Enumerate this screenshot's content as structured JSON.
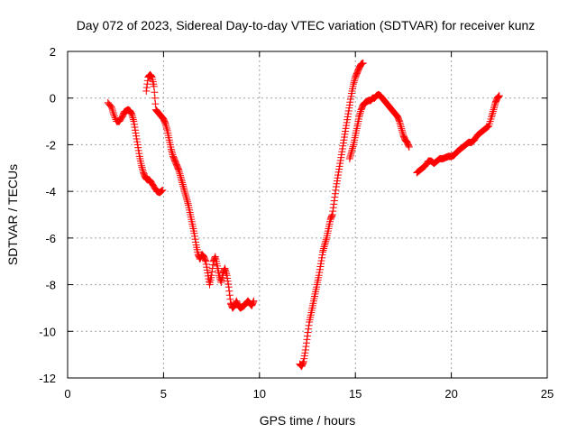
{
  "chart_data": {
    "type": "scatter",
    "title": "Day 072 of 2023, Sidereal Day-to-day VTEC variation (SDTVAR) for receiver kunz",
    "xlabel": "GPS time / hours",
    "ylabel": "SDTVAR / TECUs",
    "xlim": [
      0,
      25
    ],
    "ylim": [
      -12,
      2
    ],
    "xticks": [
      0,
      5,
      10,
      15,
      20,
      25
    ],
    "yticks": [
      2,
      0,
      -2,
      -4,
      -6,
      -8,
      -10,
      -12
    ],
    "xtick_labels": [
      "0",
      "5",
      "10",
      "15",
      "20",
      "25"
    ],
    "ytick_labels": [
      "2",
      "0",
      "-2",
      "-4",
      "-6",
      "-8",
      "-10",
      "-12"
    ],
    "grid": true,
    "marker": "plus",
    "color": "#ff0000",
    "series": [
      {
        "name": "SDTVAR",
        "segments": [
          {
            "x": [
              2.1,
              2.3,
              2.4,
              2.55,
              2.7,
              2.85,
              2.95,
              3.05,
              3.15,
              3.25,
              3.35,
              3.45,
              3.55,
              3.65,
              3.75,
              3.85,
              3.95,
              4.05,
              4.15,
              4.25,
              4.35,
              4.5,
              4.65,
              4.8,
              4.95
            ],
            "y": [
              -0.2,
              -0.4,
              -0.7,
              -1.0,
              -1.0,
              -0.8,
              -0.6,
              -0.55,
              -0.5,
              -0.55,
              -0.7,
              -1.0,
              -1.5,
              -2.0,
              -2.5,
              -2.9,
              -3.2,
              -3.4,
              -3.5,
              -3.5,
              -3.6,
              -3.8,
              -4.0,
              -4.05,
              -3.95
            ]
          },
          {
            "x": [
              4.1,
              4.2,
              4.3,
              4.4,
              4.5,
              4.6,
              4.7,
              4.8,
              4.9,
              5.0,
              5.1,
              5.2,
              5.3,
              5.4,
              5.5,
              5.6,
              5.7,
              5.8,
              5.9,
              6.0,
              6.1,
              6.2,
              6.3,
              6.4,
              6.5,
              6.6,
              6.7,
              6.8,
              6.9,
              7.0,
              7.1,
              7.2,
              7.3,
              7.4,
              7.5,
              7.6,
              7.7,
              7.8,
              7.9,
              8.0,
              8.1,
              8.2,
              8.3,
              8.4,
              8.5,
              8.6,
              8.7,
              8.8,
              8.9,
              9.0,
              9.1,
              9.2,
              9.3,
              9.4,
              9.5,
              9.6,
              9.7
            ],
            "y": [
              0.3,
              0.9,
              1.0,
              0.9,
              0.5,
              -0.5,
              -0.6,
              -0.7,
              -0.8,
              -0.9,
              -1.1,
              -1.4,
              -1.8,
              -2.2,
              -2.5,
              -2.7,
              -2.9,
              -3.1,
              -3.4,
              -3.7,
              -4.0,
              -4.3,
              -4.6,
              -5.0,
              -5.4,
              -5.8,
              -6.3,
              -6.7,
              -6.9,
              -6.7,
              -6.8,
              -7.0,
              -7.5,
              -8.0,
              -7.6,
              -7.0,
              -6.8,
              -7.2,
              -7.6,
              -7.9,
              -7.5,
              -7.3,
              -7.6,
              -8.1,
              -8.8,
              -9.0,
              -8.9,
              -8.7,
              -8.9,
              -9.0,
              -8.95,
              -8.9,
              -8.8,
              -8.7,
              -8.8,
              -8.9,
              -8.7
            ]
          },
          {
            "x": [
              12.1,
              12.2,
              12.3,
              12.4,
              12.5,
              12.6,
              12.7,
              12.8,
              12.9,
              13.0,
              13.1,
              13.2,
              13.3,
              13.4,
              13.5,
              13.6,
              13.7,
              13.8,
              13.9,
              14.0,
              14.1,
              14.2,
              14.3,
              14.4,
              14.5,
              14.6,
              14.7,
              14.8,
              14.9,
              15.0,
              15.1,
              15.2,
              15.3,
              15.4
            ],
            "y": [
              -11.4,
              -11.5,
              -11.3,
              -10.8,
              -10.2,
              -9.6,
              -9.2,
              -8.8,
              -8.4,
              -8.0,
              -7.6,
              -7.1,
              -6.6,
              -6.3,
              -6.0,
              -5.6,
              -5.2,
              -5.0,
              -4.4,
              -3.8,
              -3.3,
              -2.8,
              -2.3,
              -1.8,
              -1.3,
              -0.8,
              -0.3,
              0.2,
              0.6,
              0.9,
              1.1,
              1.3,
              1.45,
              1.5
            ]
          },
          {
            "x": [
              14.7,
              14.8,
              14.9,
              15.0,
              15.1,
              15.2,
              15.3,
              15.4,
              15.5,
              15.6,
              15.7,
              15.8,
              15.9,
              16.0,
              16.1,
              16.2,
              16.3,
              16.4,
              16.5,
              16.6,
              16.7,
              16.8,
              16.9,
              17.0,
              17.1,
              17.2,
              17.3,
              17.4,
              17.5,
              17.6,
              17.7,
              17.8
            ],
            "y": [
              -2.6,
              -2.3,
              -2.0,
              -1.6,
              -1.2,
              -0.8,
              -0.5,
              -0.3,
              -0.2,
              -0.15,
              -0.1,
              -0.1,
              0.0,
              0.0,
              0.1,
              0.15,
              0.1,
              0.0,
              -0.1,
              -0.2,
              -0.3,
              -0.4,
              -0.5,
              -0.6,
              -0.7,
              -0.8,
              -1.0,
              -1.3,
              -1.6,
              -1.8,
              -1.9,
              -2.1
            ]
          },
          {
            "x": [
              18.2,
              18.35,
              18.5,
              18.65,
              18.8,
              18.95,
              19.1,
              19.25,
              19.4,
              19.55,
              19.7,
              19.85,
              20.0,
              20.15,
              20.3,
              20.45,
              20.6,
              20.75,
              20.9,
              21.05,
              21.2,
              21.35,
              21.5,
              21.65,
              21.8,
              21.95,
              22.1,
              22.2,
              22.3,
              22.4,
              22.5
            ],
            "y": [
              -3.2,
              -3.1,
              -3.0,
              -2.9,
              -2.7,
              -2.7,
              -2.8,
              -2.7,
              -2.6,
              -2.6,
              -2.55,
              -2.5,
              -2.5,
              -2.45,
              -2.3,
              -2.2,
              -2.1,
              -2.0,
              -1.9,
              -1.9,
              -1.8,
              -1.6,
              -1.5,
              -1.4,
              -1.3,
              -1.2,
              -0.8,
              -0.5,
              -0.2,
              0.0,
              0.1
            ]
          }
        ]
      }
    ]
  }
}
